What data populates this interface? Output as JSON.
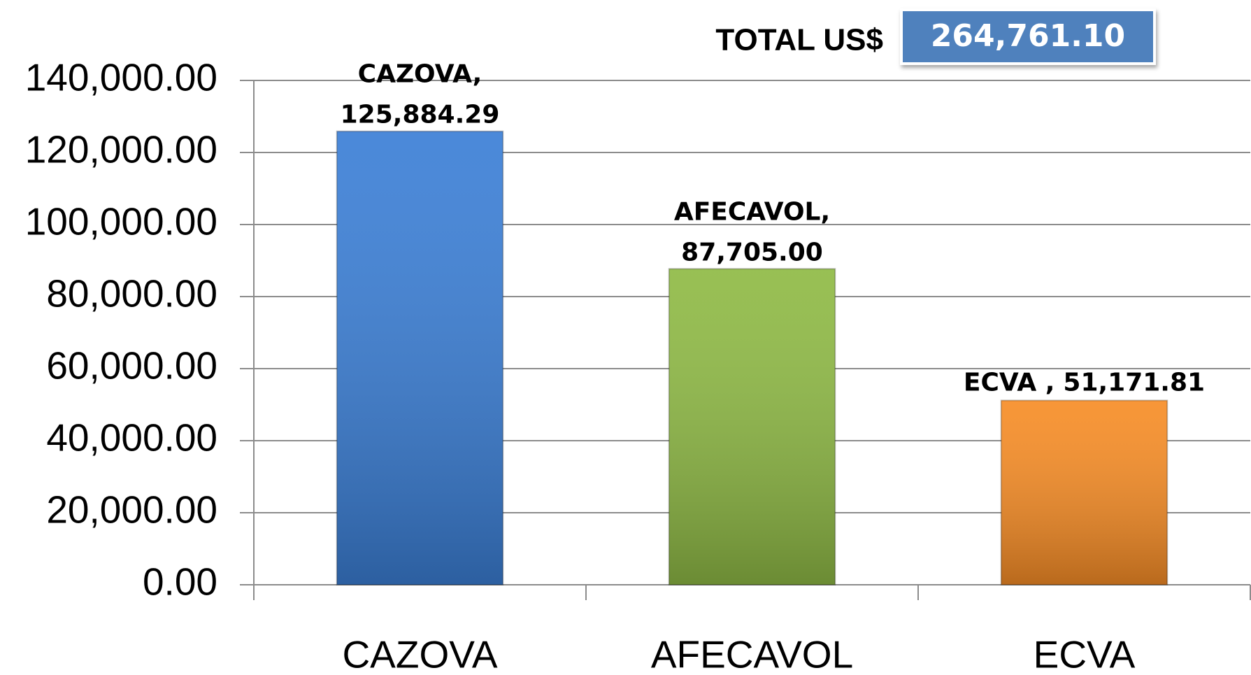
{
  "chart_data": {
    "type": "bar",
    "categories": [
      "CAZOVA",
      "AFECAVOL",
      "ECVA"
    ],
    "values": [
      125884.29,
      87705.0,
      51171.81
    ],
    "value_labels": [
      "125,884.29",
      "87,705.00",
      "51,171.81"
    ],
    "label_names": [
      "CAZOVA,",
      "AFECAVOL,",
      "ECVA ,"
    ],
    "colors": [
      "#3b7fd6",
      "#8fba45",
      "#f78d26"
    ],
    "ylim": [
      0,
      140000
    ],
    "yticks": [
      {
        "value": 0,
        "label": "0.00"
      },
      {
        "value": 20000,
        "label": "20,000.00"
      },
      {
        "value": 40000,
        "label": "40,000.00"
      },
      {
        "value": 60000,
        "label": "60,000.00"
      },
      {
        "value": 80000,
        "label": "80,000.00"
      },
      {
        "value": 100000,
        "label": "100,000.00"
      },
      {
        "value": 120000,
        "label": "120,000.00"
      },
      {
        "value": 140000,
        "label": "140,000.00"
      }
    ],
    "grid": true,
    "total_label": "TOTAL US$",
    "total": 264761.1,
    "total_value_label": "264,761.10"
  }
}
